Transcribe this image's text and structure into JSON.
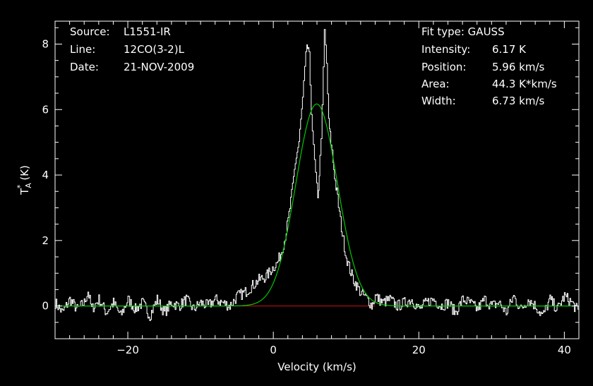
{
  "chart_data": {
    "type": "line",
    "xlabel": "Velocity (km/s)",
    "ylabel": "T",
    "ylabel_sup": "*",
    "ylabel_sub": "A",
    "ylabel_unit": "(K)",
    "xlim": [
      -30,
      42
    ],
    "ylim": [
      -1,
      8.7
    ],
    "x_ticks": [
      -20,
      0,
      20,
      40
    ],
    "x_tick_labels": [
      "−20",
      "0",
      "20",
      "40"
    ],
    "y_ticks": [
      0,
      2,
      4,
      6,
      8
    ],
    "y_tick_labels": [
      "0",
      "2",
      "4",
      "6",
      "8"
    ],
    "grid": false,
    "colors": {
      "background": "#000000",
      "axes": "#ffffff",
      "spectrum": "#ffffff",
      "fit": "#00c800",
      "baseline": "#d01010"
    },
    "series": [
      {
        "role": "spectrum",
        "x": [
          -30,
          -29,
          -28,
          -27,
          -26,
          -25.5,
          -25,
          -24,
          -23,
          -22,
          -21,
          -20,
          -19,
          -18,
          -17,
          -16,
          -15,
          -14,
          -13,
          -12,
          -11,
          -10,
          -9,
          -8,
          -7,
          -6,
          -5,
          -4,
          -3,
          -2,
          -1,
          0,
          0.5,
          1,
          1.5,
          2,
          2.5,
          3,
          3.5,
          4,
          4.3,
          4.6,
          4.9,
          5.2,
          5.5,
          5.8,
          6.1,
          6.4,
          6.7,
          7.0,
          7.3,
          7.6,
          7.9,
          8.2,
          8.5,
          8.8,
          9.2,
          9.6,
          10,
          10.5,
          11,
          11.5,
          12,
          12.5,
          13,
          13.5,
          14,
          15,
          16,
          17,
          18,
          19,
          20,
          21,
          22,
          23,
          24,
          25,
          26,
          27,
          28,
          29,
          30,
          31,
          32,
          33,
          34,
          35,
          36,
          37,
          38,
          39,
          40,
          41,
          42
        ],
        "y": [
          0.1,
          -0.2,
          0.2,
          -0.1,
          0.1,
          0.45,
          -0.1,
          0.2,
          -0.2,
          0.1,
          -0.3,
          0.2,
          -0.1,
          0.1,
          -0.3,
          0.2,
          -0.2,
          0.1,
          0.0,
          0.2,
          -0.1,
          0.1,
          0.0,
          0.2,
          0.1,
          0.0,
          0.3,
          0.4,
          0.6,
          0.8,
          0.9,
          1.2,
          1.3,
          1.6,
          2.0,
          2.6,
          3.4,
          4.4,
          5.0,
          6.3,
          7.2,
          8.0,
          7.6,
          6.0,
          4.8,
          4.0,
          3.2,
          4.5,
          6.0,
          8.4,
          7.4,
          5.6,
          5.0,
          4.4,
          3.8,
          3.3,
          2.6,
          2.0,
          1.5,
          1.1,
          0.8,
          0.6,
          0.4,
          0.3,
          0.2,
          0.0,
          0.3,
          0.1,
          0.2,
          0.0,
          0.1,
          0.2,
          -0.1,
          0.1,
          0.2,
          0.0,
          0.1,
          -0.2,
          0.2,
          0.1,
          -0.1,
          0.2,
          0.0,
          0.1,
          -0.2,
          0.3,
          -0.1,
          0.2,
          0.0,
          -0.3,
          0.2,
          -0.1,
          0.3,
          0.1,
          -0.2
        ]
      },
      {
        "role": "fit",
        "fit_type": "gauss",
        "amplitude": 6.17,
        "center": 5.96,
        "fwhm": 6.73
      },
      {
        "role": "baseline",
        "x": [
          -5,
          14
        ],
        "y": [
          0,
          0
        ]
      }
    ]
  },
  "info_left": [
    {
      "label": "Source:",
      "value": "L1551-IR"
    },
    {
      "label": "Line:",
      "value": "12CO(3-2)L"
    },
    {
      "label": "Date:",
      "value": "21-NOV-2009"
    }
  ],
  "info_right": {
    "fit_type": "Fit type: GAUSS",
    "rows": [
      {
        "label": "Intensity:",
        "value": "6.17 K"
      },
      {
        "label": "Position:",
        "value": "5.96 km/s"
      },
      {
        "label": "Area:",
        "value": "44.3 K*km/s"
      },
      {
        "label": "Width:",
        "value": "6.73 km/s"
      }
    ]
  }
}
